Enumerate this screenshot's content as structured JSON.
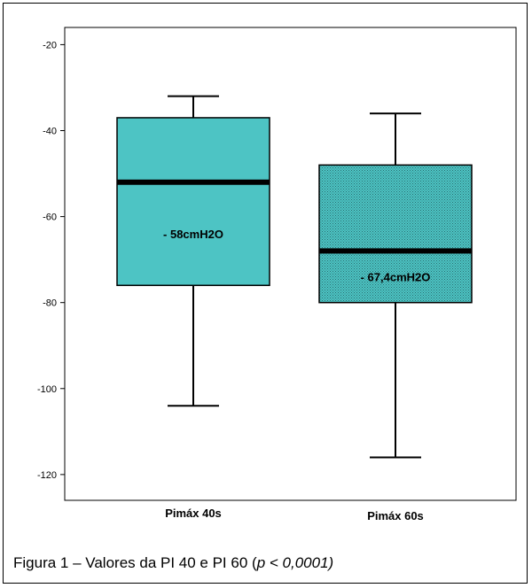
{
  "chart_data": {
    "type": "box",
    "ylim": [
      -126,
      -16
    ],
    "yticks": [
      -20,
      -40,
      -60,
      -80,
      -100,
      -120
    ],
    "ytick_labels": [
      "-20",
      "-40",
      "-60",
      "-80",
      "-100",
      "-120"
    ],
    "colors": {
      "box_fill": "#4DC4C4",
      "border": "#000000"
    },
    "boxes": [
      {
        "category": "Pimáx 40s",
        "whisker_high": -32,
        "q3": -37,
        "median": -52,
        "q1": -76,
        "whisker_low": -104,
        "label": "- 58cmH2O",
        "pattern": "solid"
      },
      {
        "category": "Pimáx 60s",
        "whisker_high": -36,
        "q3": -48,
        "median": -68,
        "q1": -80,
        "whisker_low": -116,
        "label": "- 67,4cmH2O",
        "pattern": "dotted"
      }
    ]
  },
  "caption": {
    "prefix": "Figura 1 – Valores da PI 40 e PI 60 (",
    "p_symbol": "p",
    "rest": " < 0,0001)"
  }
}
